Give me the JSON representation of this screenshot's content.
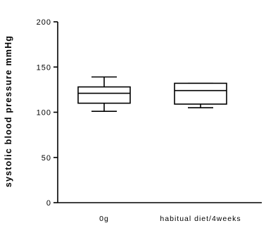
{
  "chart_data": {
    "type": "boxplot",
    "title": "",
    "xlabel": "",
    "ylabel": "systolic blood pressure mmHg",
    "ylim": [
      0,
      200
    ],
    "yticks": [
      0,
      50,
      100,
      150,
      200
    ],
    "ytick_labels": [
      "0",
      "50",
      "100",
      "150",
      "200"
    ],
    "grid": false,
    "legend": "none",
    "categories": [
      "0g",
      "habitual diet/4weeks"
    ],
    "boxes": [
      {
        "category": "0g",
        "min": 101,
        "q1": 110,
        "median": 121,
        "q3": 128,
        "max": 139
      },
      {
        "category": "habitual diet/4weeks",
        "min": 105,
        "q1": 109,
        "median": 124,
        "q3": 132,
        "max": 132
      }
    ],
    "colors": {
      "stroke": "#000000",
      "fill": "#ffffff"
    }
  }
}
